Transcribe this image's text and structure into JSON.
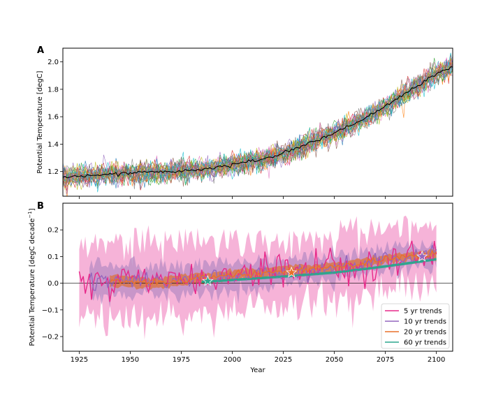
{
  "chart_data": [
    {
      "panel": "A",
      "type": "line",
      "ylabel": "Potential Temperature [degC]",
      "xlim": [
        1917,
        2108
      ],
      "ylim": [
        1.02,
        2.1
      ],
      "xticks": [
        1925,
        1950,
        1975,
        2000,
        2025,
        2050,
        2075,
        2100
      ],
      "yticks": [
        "1.2",
        "1.4",
        "1.6",
        "1.8",
        "2.0"
      ],
      "ytick_values": [
        1.2,
        1.4,
        1.6,
        1.8,
        2.0
      ],
      "ensemble_count": 30,
      "ensemble_colors": [
        "#1f77b4",
        "#ff7f0e",
        "#2ca02c",
        "#d62728",
        "#9467bd",
        "#8c564b",
        "#e377c2",
        "#7f7f7f",
        "#bcbd22",
        "#17becf"
      ],
      "mean_color": "#000000",
      "mean": {
        "x": [
          1917,
          1930,
          1950,
          1970,
          1990,
          2000,
          2010,
          2020,
          2030,
          2040,
          2050,
          2060,
          2070,
          2080,
          2090,
          2100,
          2108
        ],
        "y": [
          1.16,
          1.17,
          1.19,
          1.2,
          1.22,
          1.25,
          1.28,
          1.31,
          1.36,
          1.42,
          1.48,
          1.55,
          1.63,
          1.72,
          1.82,
          1.91,
          1.97
        ]
      }
    },
    {
      "panel": "B",
      "type": "line",
      "ylabel": "Potential Temperature [degC decade",
      "ylabel_sup": "−1",
      "ylabel_end": "]",
      "xlabel": "Year",
      "xlim": [
        1917,
        2108
      ],
      "ylim": [
        -0.255,
        0.3
      ],
      "xticks": [
        1925,
        1950,
        1975,
        2000,
        2025,
        2050,
        2075,
        2100
      ],
      "yticks": [
        "0.2",
        "0.1",
        "0.0",
        "−0.1",
        "−0.2"
      ],
      "ytick_values": [
        0.2,
        0.1,
        0.0,
        -0.1,
        -0.2
      ],
      "series": [
        {
          "name": "5 yr trends",
          "color": "#e7298a",
          "band_color": "#f4a6d1",
          "x_start": 1925,
          "x_end": 2100,
          "band_halfwidth": [
            0.15,
            0.11
          ],
          "mean_knots": {
            "x": [
              1925,
              1950,
              1975,
              2000,
              2025,
              2050,
              2075,
              2100
            ],
            "y": [
              0.005,
              0.01,
              0.015,
              0.025,
              0.04,
              0.06,
              0.09,
              0.11
            ]
          }
        },
        {
          "name": "10 yr trends",
          "color": "#9467bd",
          "band_color": "#b88cc4",
          "x_start": 1930,
          "x_end": 2100,
          "band_halfwidth": [
            0.06,
            0.04
          ],
          "mean_knots": {
            "x": [
              1930,
              1950,
              1975,
              2000,
              2025,
              2050,
              2075,
              2100
            ],
            "y": [
              0.01,
              0.01,
              0.012,
              0.025,
              0.04,
              0.06,
              0.09,
              0.105
            ]
          }
        },
        {
          "name": "20 yr trends",
          "color": "#e8702a",
          "band_color": "#d9784a",
          "x_start": 1940,
          "x_end": 2100,
          "band_halfwidth": [
            0.02,
            0.015
          ],
          "mean_knots": {
            "x": [
              1940,
              1960,
              1980,
              2000,
              2025,
              2050,
              2075,
              2100
            ],
            "y": [
              0.012,
              0.0,
              0.015,
              0.03,
              0.045,
              0.06,
              0.09,
              0.11
            ]
          }
        },
        {
          "name": "60 yr trends",
          "color": "#2ca58d",
          "band_color": "#2ca58d",
          "x_start": 1985,
          "x_end": 2100,
          "band_halfwidth": [
            0.005,
            0.005
          ],
          "mean_knots": {
            "x": [
              1985,
              2000,
              2025,
              2050,
              2075,
              2100
            ],
            "y": [
              0.005,
              0.012,
              0.025,
              0.04,
              0.063,
              0.09
            ]
          }
        }
      ],
      "stars": [
        {
          "x": 1988,
          "y": 0.008,
          "color": "#2ca58d"
        },
        {
          "x": 2029,
          "y": 0.04,
          "color": "#e8702a"
        },
        {
          "x": 2093,
          "y": 0.1,
          "color": "#9467bd"
        }
      ],
      "legend_position": "lower-right"
    }
  ],
  "labels": {
    "panel_a": "A",
    "panel_b": "B"
  }
}
